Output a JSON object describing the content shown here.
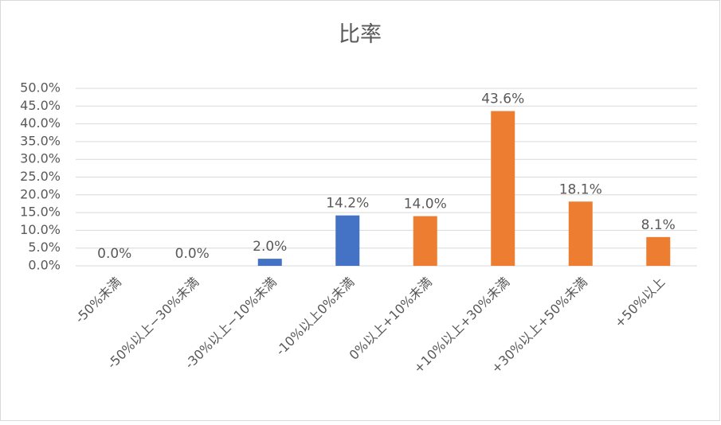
{
  "chart_data": {
    "type": "bar",
    "title": "比率",
    "categories": [
      "-50%未満",
      "-50%以上−30%未満",
      "-30%以上−10%未満",
      "-10%以上0%未満",
      "0%以上+10%未満",
      "+10%以上+30%未満",
      "+30%以上+50%未満",
      "+50%以上"
    ],
    "values": [
      0,
      0,
      2.0,
      14.2,
      14.0,
      43.6,
      18.1,
      8.1
    ],
    "value_labels": [
      "0.0%",
      "0.0%",
      "2.0%",
      "14.2%",
      "14.0%",
      "43.6%",
      "18.1%",
      "8.1%"
    ],
    "colors": [
      "#4472c4",
      "#4472c4",
      "#4472c4",
      "#4472c4",
      "#ed7d31",
      "#ed7d31",
      "#ed7d31",
      "#ed7d31"
    ],
    "ylim": [
      0,
      50
    ],
    "yticks": [
      {
        "value": 0,
        "label": "0.0%"
      },
      {
        "value": 5,
        "label": "5.0%"
      },
      {
        "value": 10,
        "label": "10.0%"
      },
      {
        "value": 15,
        "label": "15.0%"
      },
      {
        "value": 20,
        "label": "20.0%"
      },
      {
        "value": 25,
        "label": "25.0%"
      },
      {
        "value": 30,
        "label": "30.0%"
      },
      {
        "value": 35,
        "label": "35.0%"
      },
      {
        "value": 40,
        "label": "40.0%"
      },
      {
        "value": 45,
        "label": "45.0%"
      },
      {
        "value": 50,
        "label": "50.0%"
      }
    ],
    "grid": true
  }
}
